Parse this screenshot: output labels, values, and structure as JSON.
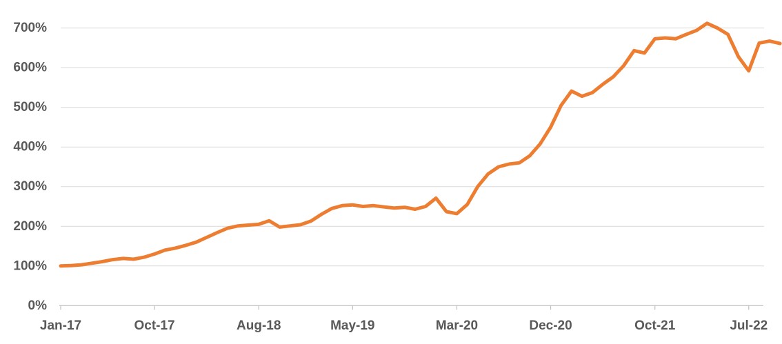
{
  "chart_data": {
    "type": "line",
    "title": "",
    "x": [
      "Jan-17",
      "Feb-17",
      "Mar-17",
      "Apr-17",
      "May-17",
      "Jun-17",
      "Jul-17",
      "Aug-17",
      "Sep-17",
      "Oct-17",
      "Nov-17",
      "Dec-17",
      "Jan-18",
      "Feb-18",
      "Mar-18",
      "Apr-18",
      "May-18",
      "Jun-18",
      "Jul-18",
      "Aug-18",
      "Sep-18",
      "Oct-18",
      "Nov-18",
      "Dec-18",
      "Jan-19",
      "Feb-19",
      "Mar-19",
      "Apr-19",
      "May-19",
      "Jun-19",
      "Jul-19",
      "Aug-19",
      "Sep-19",
      "Oct-19",
      "Nov-19",
      "Dec-19",
      "Jan-20",
      "Feb-20",
      "Mar-20",
      "Apr-20",
      "May-20",
      "Jun-20",
      "Jul-20",
      "Aug-20",
      "Sep-20",
      "Oct-20",
      "Nov-20",
      "Dec-20",
      "Jan-21",
      "Feb-21",
      "Mar-21",
      "Apr-21",
      "May-21",
      "Jun-21",
      "Jul-21",
      "Aug-21",
      "Sep-21",
      "Oct-21",
      "Nov-21",
      "Dec-21",
      "Jan-22",
      "Feb-22",
      "Mar-22",
      "Apr-22",
      "May-22",
      "Jun-22",
      "Jul-22",
      "Aug-22",
      "Sep-22",
      "Oct-22"
    ],
    "values": [
      100,
      101,
      103,
      107,
      111,
      116,
      119,
      117,
      122,
      130,
      140,
      145,
      152,
      160,
      172,
      184,
      195,
      201,
      203,
      205,
      214,
      198,
      201,
      204,
      213,
      230,
      245,
      252,
      254,
      250,
      252,
      249,
      246,
      248,
      243,
      250,
      271,
      237,
      232,
      255,
      300,
      332,
      350,
      357,
      360,
      378,
      408,
      450,
      505,
      541,
      528,
      537,
      558,
      577,
      605,
      643,
      637,
      673,
      675,
      673,
      684,
      694,
      712,
      700,
      684,
      628,
      592,
      662,
      667,
      661
    ],
    "unit": "%",
    "xlabel": "",
    "ylabel": "",
    "ylim": [
      0,
      700
    ],
    "grid": "horizontal",
    "legend": "none",
    "y_axis": {
      "ticks": [
        0,
        100,
        200,
        300,
        400,
        500,
        600,
        700
      ],
      "tick_labels": [
        "0%",
        "100%",
        "200%",
        "300%",
        "400%",
        "500%",
        "600%",
        "700%"
      ]
    },
    "x_axis": {
      "tick_labels": [
        {
          "label": "Jan-17",
          "month_index": 0
        },
        {
          "label": "Oct-17",
          "month_index": 9
        },
        {
          "label": "Aug-18",
          "month_index": 19
        },
        {
          "label": "May-19",
          "month_index": 28
        },
        {
          "label": "Mar-20",
          "month_index": 38
        },
        {
          "label": "Dec-20",
          "month_index": 47
        },
        {
          "label": "Oct-21",
          "month_index": 57
        },
        {
          "label": "Jul-22",
          "month_index": 66
        }
      ]
    },
    "colors": {
      "line": "#ED7D31",
      "gridline": "#D9D9D9",
      "axis": "#BFBFBF",
      "label": "#595959",
      "background": "#FFFFFF"
    }
  }
}
